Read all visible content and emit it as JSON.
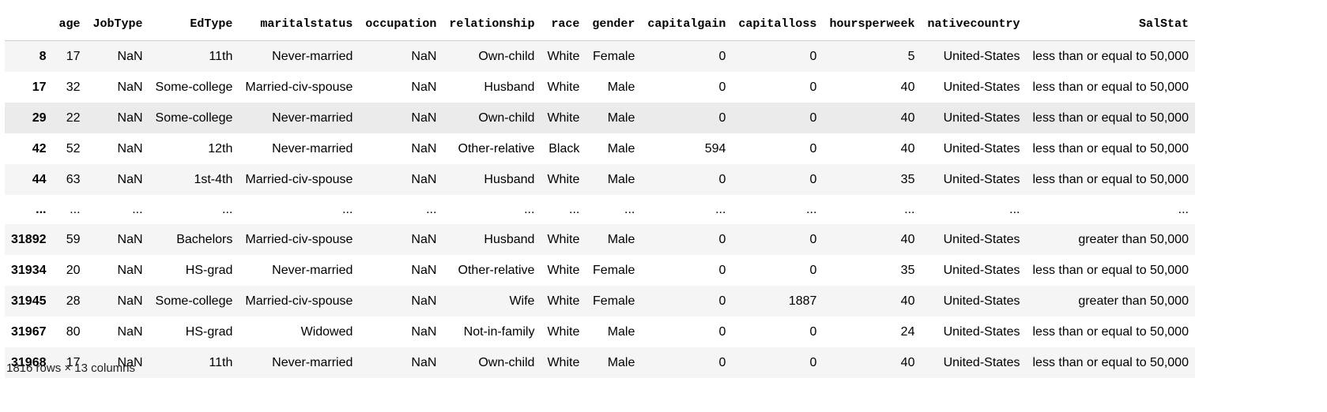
{
  "table": {
    "index_header": "",
    "columns": [
      "age",
      "JobType",
      "EdType",
      "maritalstatus",
      "occupation",
      "relationship",
      "race",
      "gender",
      "capitalgain",
      "capitalloss",
      "hoursperweek",
      "nativecountry",
      "SalStat"
    ],
    "rows": [
      {
        "index": "8",
        "cells": [
          "17",
          "NaN",
          "11th",
          "Never-married",
          "NaN",
          "Own-child",
          "White",
          "Female",
          "0",
          "0",
          "5",
          "United-States",
          "less than or equal to 50,000"
        ]
      },
      {
        "index": "17",
        "cells": [
          "32",
          "NaN",
          "Some-college",
          "Married-civ-spouse",
          "NaN",
          "Husband",
          "White",
          "Male",
          "0",
          "0",
          "40",
          "United-States",
          "less than or equal to 50,000"
        ]
      },
      {
        "index": "29",
        "cells": [
          "22",
          "NaN",
          "Some-college",
          "Never-married",
          "NaN",
          "Own-child",
          "White",
          "Male",
          "0",
          "0",
          "40",
          "United-States",
          "less than or equal to 50,000"
        ]
      },
      {
        "index": "42",
        "cells": [
          "52",
          "NaN",
          "12th",
          "Never-married",
          "NaN",
          "Other-relative",
          "Black",
          "Male",
          "594",
          "0",
          "40",
          "United-States",
          "less than or equal to 50,000"
        ]
      },
      {
        "index": "44",
        "cells": [
          "63",
          "NaN",
          "1st-4th",
          "Married-civ-spouse",
          "NaN",
          "Husband",
          "White",
          "Male",
          "0",
          "0",
          "35",
          "United-States",
          "less than or equal to 50,000"
        ]
      },
      {
        "index": "...",
        "cells": [
          "...",
          "...",
          "...",
          "...",
          "...",
          "...",
          "...",
          "...",
          "...",
          "...",
          "...",
          "...",
          "..."
        ]
      },
      {
        "index": "31892",
        "cells": [
          "59",
          "NaN",
          "Bachelors",
          "Married-civ-spouse",
          "NaN",
          "Husband",
          "White",
          "Male",
          "0",
          "0",
          "40",
          "United-States",
          "greater than 50,000"
        ]
      },
      {
        "index": "31934",
        "cells": [
          "20",
          "NaN",
          "HS-grad",
          "Never-married",
          "NaN",
          "Other-relative",
          "White",
          "Female",
          "0",
          "0",
          "35",
          "United-States",
          "less than or equal to 50,000"
        ]
      },
      {
        "index": "31945",
        "cells": [
          "28",
          "NaN",
          "Some-college",
          "Married-civ-spouse",
          "NaN",
          "Wife",
          "White",
          "Female",
          "0",
          "1887",
          "40",
          "United-States",
          "greater than 50,000"
        ]
      },
      {
        "index": "31967",
        "cells": [
          "80",
          "NaN",
          "HS-grad",
          "Widowed",
          "NaN",
          "Not-in-family",
          "White",
          "Male",
          "0",
          "0",
          "24",
          "United-States",
          "less than or equal to 50,000"
        ]
      },
      {
        "index": "31968",
        "cells": [
          "17",
          "NaN",
          "11th",
          "Never-married",
          "NaN",
          "Own-child",
          "White",
          "Male",
          "0",
          "0",
          "40",
          "United-States",
          "less than or equal to 50,000"
        ]
      }
    ],
    "highlighted_row": 2
  },
  "footer": {
    "shape_text": "1816 rows × 13 columns"
  }
}
